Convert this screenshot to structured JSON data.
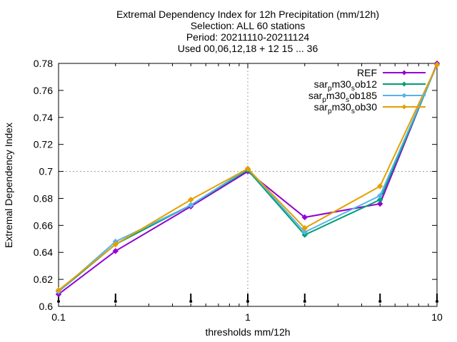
{
  "chart_data": {
    "type": "line",
    "title_lines": [
      "Extremal Dependency Index  for 12h Precipitation (mm/12h)",
      "Selection: ALL     60 stations",
      "Period: 20211110-20211124",
      "Used 00,06,12,18 + 12 15 ... 36"
    ],
    "xlabel": "thresholds mm/12h",
    "ylabel": "Extremal Dependency Index",
    "x_scale": "log",
    "xlim": [
      0.1,
      10
    ],
    "ylim": [
      0.6,
      0.78
    ],
    "x_ticks": [
      {
        "value": 0.1,
        "label": "0.1"
      },
      {
        "value": 1,
        "label": "1"
      },
      {
        "value": 10,
        "label": "10"
      }
    ],
    "y_ticks": [
      {
        "value": 0.6,
        "label": "0.6"
      },
      {
        "value": 0.62,
        "label": "0.62"
      },
      {
        "value": 0.64,
        "label": "0.64"
      },
      {
        "value": 0.66,
        "label": "0.66"
      },
      {
        "value": 0.68,
        "label": "0.68"
      },
      {
        "value": 0.7,
        "label": "0.7"
      },
      {
        "value": 0.72,
        "label": "0.72"
      },
      {
        "value": 0.74,
        "label": "0.74"
      },
      {
        "value": 0.76,
        "label": "0.76"
      },
      {
        "value": 0.78,
        "label": "0.78"
      }
    ],
    "grid": "dotted lines at x = 1 and y = 0.7",
    "legend_position": "top-right",
    "x": [
      0.1,
      0.2,
      0.5,
      1,
      2,
      5,
      10
    ],
    "series": [
      {
        "name": "REF",
        "legend_parts": [
          [
            "REF",
            "n"
          ]
        ],
        "color": "#9400d3",
        "values": [
          0.609,
          0.641,
          0.674,
          0.7,
          0.666,
          0.676,
          0.78
        ]
      },
      {
        "name": "sar_p m30_s ob12",
        "legend_parts": [
          [
            "sar",
            "n"
          ],
          [
            "p",
            "s"
          ],
          [
            "m30",
            "n"
          ],
          [
            "s",
            "s"
          ],
          [
            "ob12",
            "n"
          ]
        ],
        "color": "#009e73",
        "values": [
          0.611,
          0.646,
          0.675,
          0.701,
          0.653,
          0.679,
          0.779
        ]
      },
      {
        "name": "sar_p m30_s ob185",
        "legend_parts": [
          [
            "sar",
            "n"
          ],
          [
            "p",
            "s"
          ],
          [
            "m30",
            "n"
          ],
          [
            "s",
            "s"
          ],
          [
            "ob185",
            "n"
          ]
        ],
        "color": "#56b4e9",
        "values": [
          0.611,
          0.648,
          0.675,
          0.702,
          0.655,
          0.682,
          0.779
        ]
      },
      {
        "name": "sar_p m30_s ob30",
        "legend_parts": [
          [
            "sar",
            "n"
          ],
          [
            "p",
            "s"
          ],
          [
            "m30",
            "n"
          ],
          [
            "s",
            "s"
          ],
          [
            "ob30",
            "n"
          ]
        ],
        "color": "#e69f00",
        "values": [
          0.612,
          0.646,
          0.679,
          0.702,
          0.658,
          0.689,
          0.779
        ]
      }
    ],
    "threshold_markers": [
      0.1,
      0.2,
      0.5,
      1,
      2,
      5,
      10
    ]
  }
}
